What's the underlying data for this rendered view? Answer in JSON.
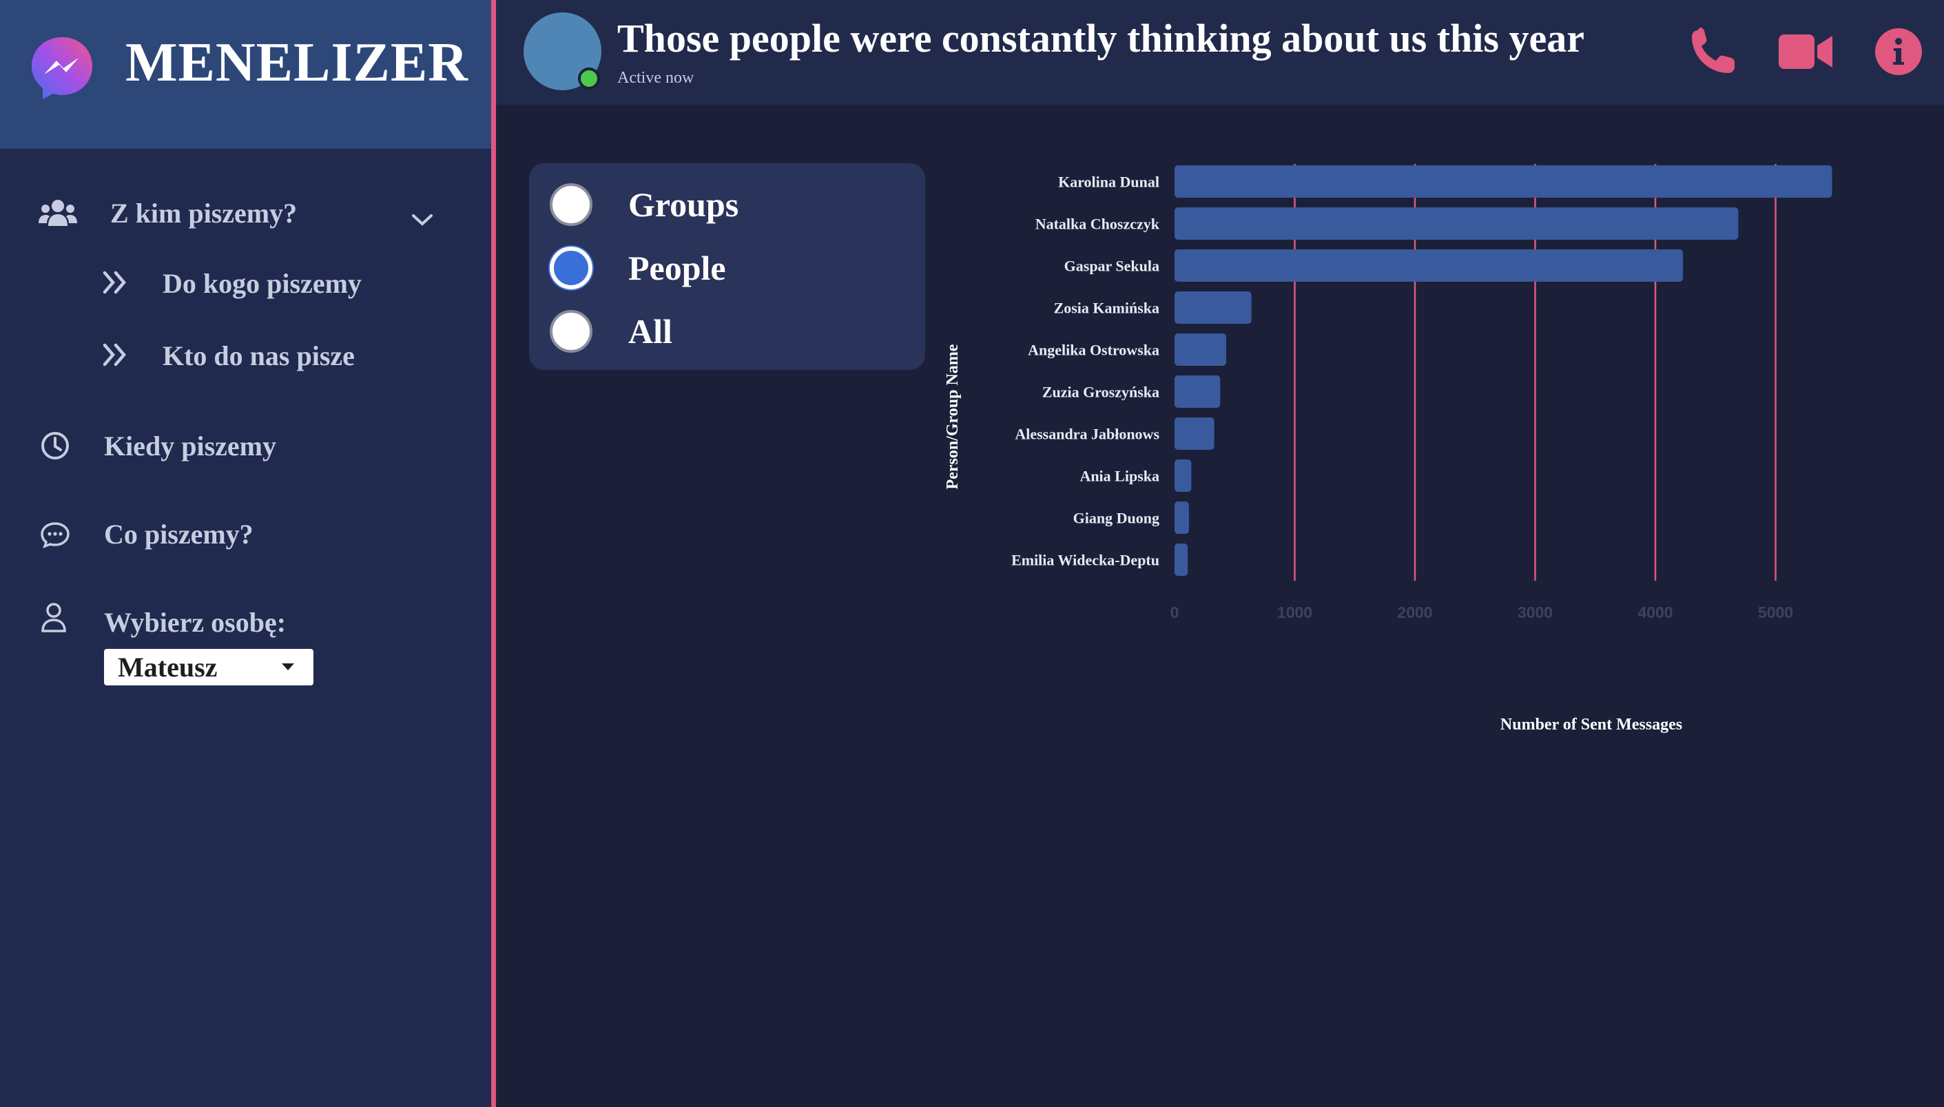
{
  "app": {
    "title": "MENELIZER"
  },
  "sidebar": {
    "section": {
      "label": "Z kim piszemy?",
      "icon": "users-icon",
      "expand_icon": "chevron-down-icon"
    },
    "subitems": [
      {
        "label": "Do kogo piszemy",
        "icon": "double-chevron-right-icon"
      },
      {
        "label": "Kto do nas pisze",
        "icon": "double-chevron-right-icon"
      }
    ],
    "items": [
      {
        "label": "Kiedy piszemy",
        "icon": "clock-icon"
      },
      {
        "label": "Co piszemy?",
        "icon": "chat-bubble-icon"
      },
      {
        "label": "Wybierz osobę:",
        "icon": "person-icon"
      }
    ],
    "person_select": {
      "value": "Mateusz"
    }
  },
  "header": {
    "title": "Those people were constantly thinking about us this year",
    "status": "Active now",
    "actions": [
      "phone-icon",
      "video-camera-icon",
      "info-icon"
    ]
  },
  "filter": {
    "options": [
      {
        "label": "Groups",
        "checked": false
      },
      {
        "label": "People",
        "checked": true
      },
      {
        "label": "All",
        "checked": false
      }
    ]
  },
  "colors": {
    "accent": "#e0577f",
    "bar": "#3a5a9e",
    "sidebar": "#1f2a4e",
    "brand": "#2d4779",
    "background": "#1b2038",
    "radio_checked": "#3b6fd8"
  },
  "chart_data": {
    "type": "bar",
    "orientation": "horizontal",
    "categories": [
      "Karolina Dunal",
      "Natalka Choszczyk",
      "Gaspar Sekula",
      "Zosia Kamińska",
      "Angelika Ostrowska",
      "Zuzia Groszyńska",
      "Alessandra Jabłonows",
      "Ania Lipska",
      "Giang Duong",
      "Emilia Widecka-Deptu"
    ],
    "values": [
      5470,
      4690,
      4230,
      640,
      430,
      380,
      330,
      140,
      120,
      110
    ],
    "xlabel": "Number of Sent Messages",
    "ylabel": "Person/Group Name",
    "xticks": [
      0,
      1000,
      2000,
      3000,
      4000,
      5000
    ],
    "xlim": [
      0,
      5800
    ],
    "grid": "vertical"
  }
}
